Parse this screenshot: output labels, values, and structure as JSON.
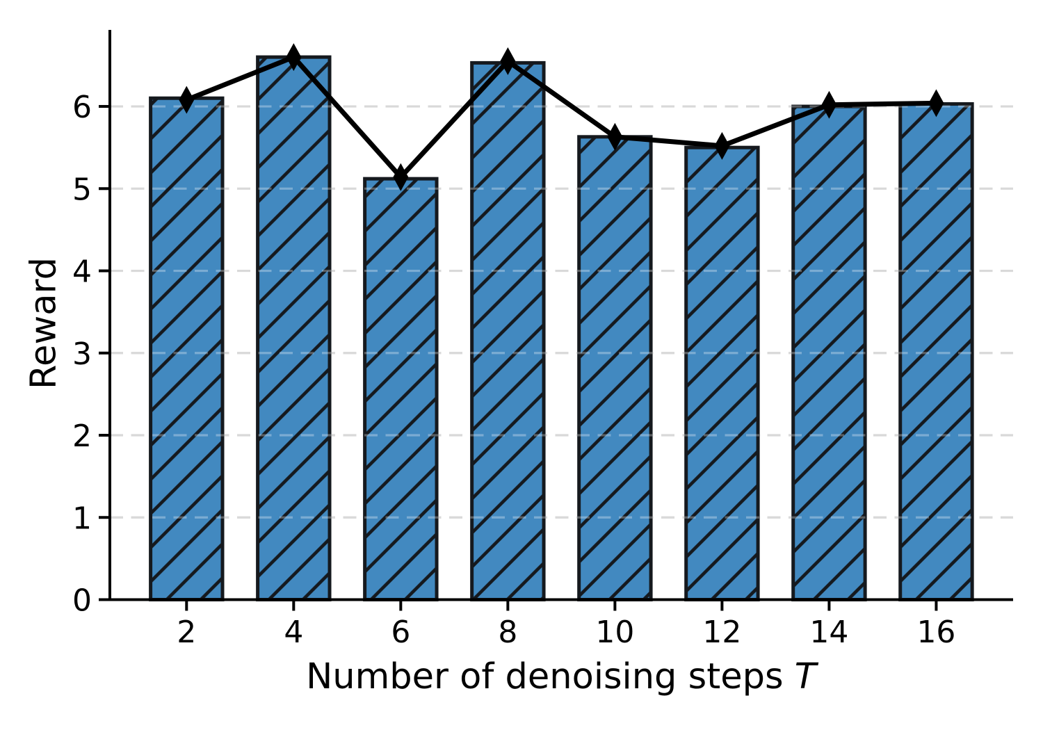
{
  "figure": {
    "ylabel": "Reward",
    "xlabel_main": "Number of denoising steps",
    "xlabel_var": "T"
  },
  "chart_data": {
    "type": "bar",
    "title": "",
    "categories": [
      "2",
      "4",
      "6",
      "8",
      "10",
      "12",
      "14",
      "16"
    ],
    "series": [
      {
        "name": "reward-bars",
        "type": "bar",
        "hatch": "/",
        "values": [
          6.1,
          6.6,
          5.12,
          6.53,
          5.63,
          5.5,
          6.0,
          6.03
        ]
      },
      {
        "name": "reward-line",
        "type": "line",
        "marker": "thin-diamond",
        "values": [
          6.08,
          6.6,
          5.14,
          6.55,
          5.63,
          5.52,
          6.02,
          6.04
        ]
      }
    ],
    "xlabel": "Number of denoising steps T",
    "ylabel": "Reward",
    "ylim": [
      0,
      6.93
    ],
    "yticks": [
      0,
      1,
      2,
      3,
      4,
      5,
      6
    ],
    "grid": {
      "axis": "y",
      "style": "dashed",
      "on": true
    },
    "legend": "none",
    "colors": {
      "bar_fill": "#4289c0",
      "bar_edge": "#15191e",
      "hatch": "#15191e",
      "line": "#000000",
      "marker": "#000000",
      "grid": "#c9c9c9",
      "axis": "#000000",
      "text": "#000000",
      "background": "#ffffff"
    }
  }
}
